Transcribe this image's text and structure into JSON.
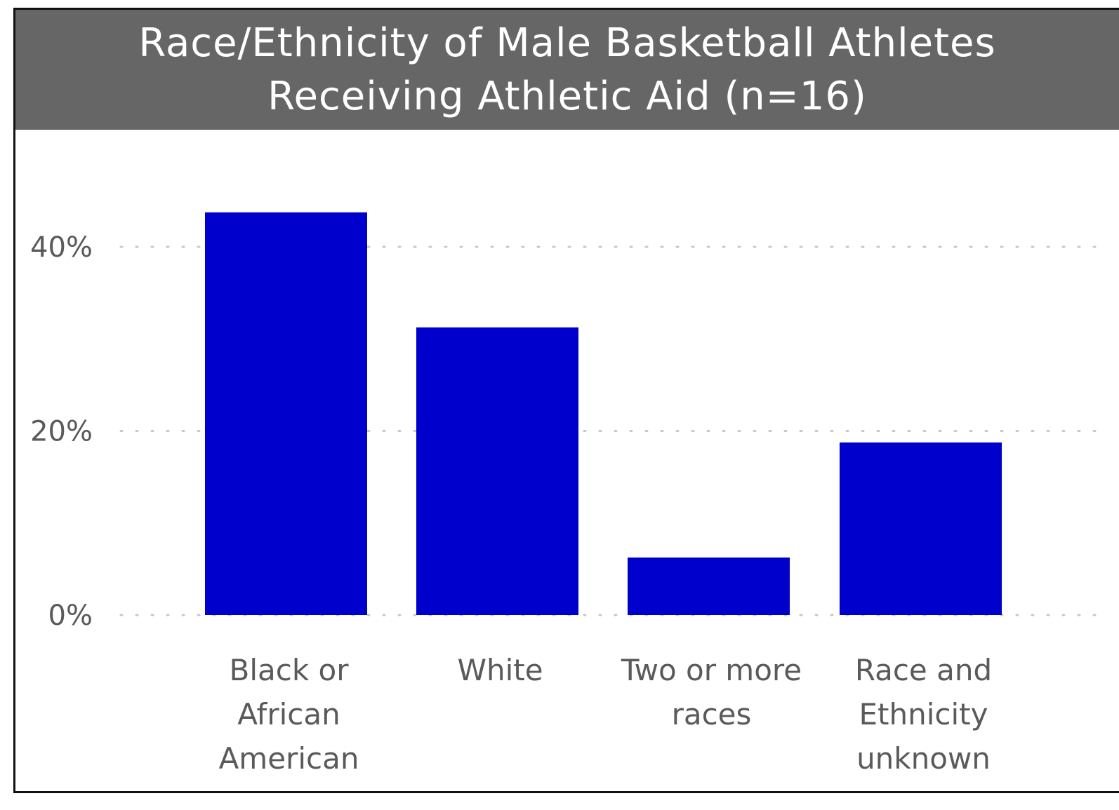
{
  "chart_data": {
    "type": "bar",
    "title": "Race/Ethnicity of Male Basketball Athletes\nReceiving Athletic Aid (n=16)",
    "categories": [
      [
        "Black or",
        "African",
        "American"
      ],
      [
        "White"
      ],
      [
        "Two or more",
        "races"
      ],
      [
        "Race and",
        "Ethnicity",
        "unknown"
      ]
    ],
    "values": [
      43.75,
      31.25,
      6.25,
      18.75
    ],
    "y_ticks": [
      {
        "value": 0,
        "label": "0%"
      },
      {
        "value": 20,
        "label": "20%"
      },
      {
        "value": 40,
        "label": "40%"
      }
    ],
    "ylim": [
      0,
      50
    ],
    "bar_color": "#0000CD",
    "grid": "dotted-horizontal",
    "header_color": "#666666"
  }
}
